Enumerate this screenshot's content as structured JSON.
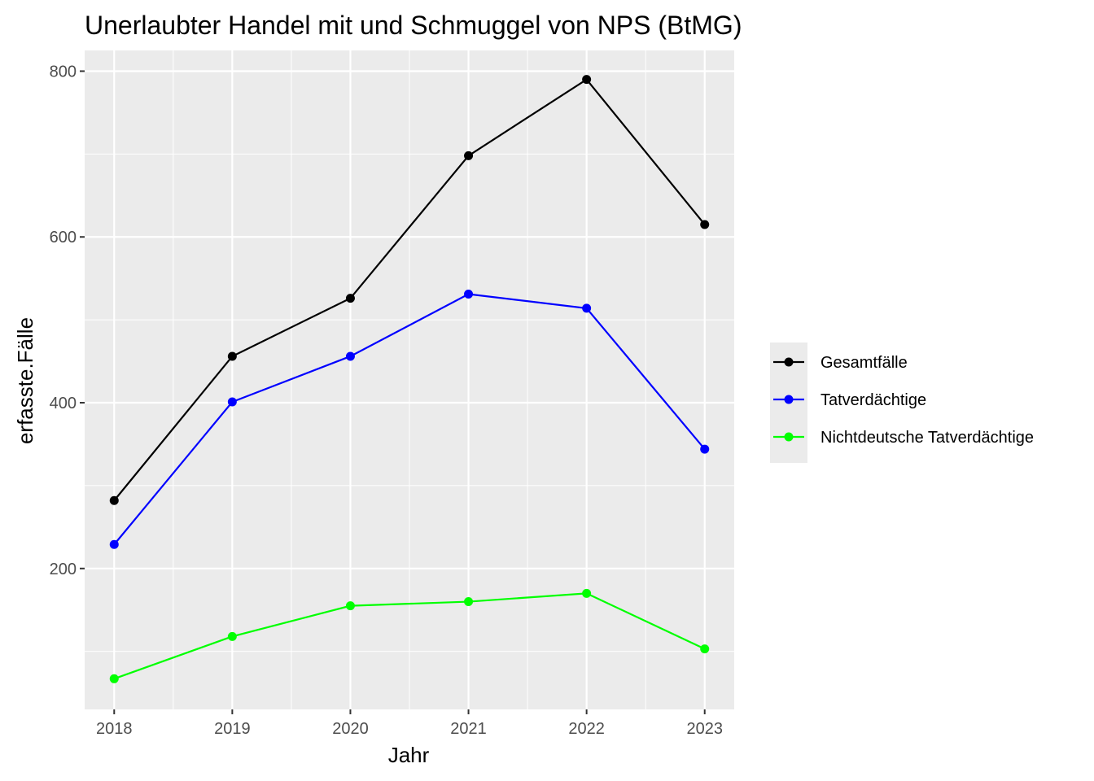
{
  "chart_data": {
    "type": "line",
    "title": "Unerlaubter Handel mit und Schmuggel von NPS (BtMG)",
    "xlabel": "Jahr",
    "ylabel": "erfasste.Fälle",
    "x": [
      2018,
      2019,
      2020,
      2021,
      2022,
      2023
    ],
    "x_tick_labels": [
      "2018",
      "2019",
      "2020",
      "2021",
      "2022",
      "2023"
    ],
    "y_ticks": [
      200,
      400,
      600,
      800
    ],
    "y_tick_labels": [
      "200",
      "400",
      "600",
      "800"
    ],
    "xlim": [
      2017.75,
      2023.25
    ],
    "ylim": [
      30,
      825
    ],
    "grid": true,
    "legend_position": "right",
    "series": [
      {
        "name": "Gesamtfälle",
        "color": "#000000",
        "values": [
          282,
          456,
          526,
          698,
          790,
          615
        ]
      },
      {
        "name": "Tatverdächtige",
        "color": "#0000ff",
        "values": [
          229,
          401,
          456,
          531,
          514,
          344
        ]
      },
      {
        "name": "Nichtdeutsche Tatverdächtige",
        "color": "#00ff00",
        "values": [
          67,
          118,
          155,
          160,
          170,
          103
        ]
      }
    ]
  }
}
